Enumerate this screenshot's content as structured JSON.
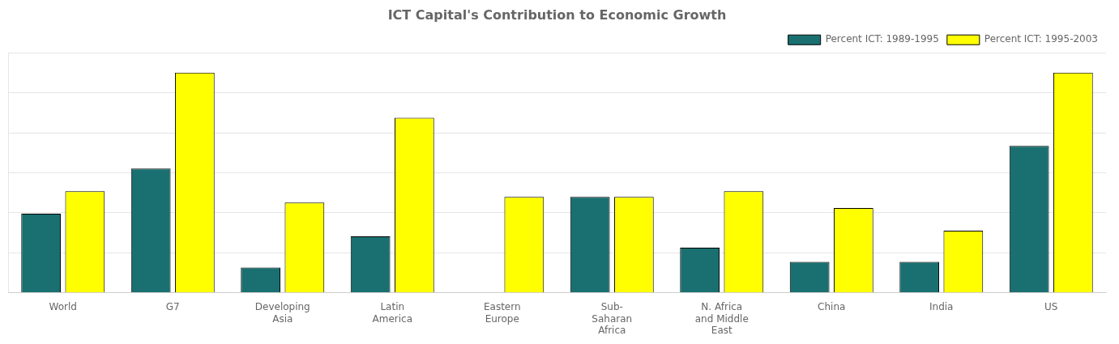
{
  "chart_data": {
    "type": "bar",
    "title": "ICT Capital's Contribution to Economic Growth",
    "categories": [
      "World",
      "G7",
      "Developing\nAsia",
      "Latin\nAmerica",
      "Eastern\nEurope",
      "Sub-\nSaharan\nAfrica",
      "N. Africa\nand Middle\nEast",
      "China",
      "India",
      "US"
    ],
    "series": [
      {
        "name": "Percent ICT: 1989-1995",
        "color": "#1a7070",
        "values": [
          28,
          44,
          9,
          20,
          0,
          34,
          16,
          11,
          11,
          52
        ]
      },
      {
        "name": "Percent ICT: 1995-2003",
        "color": "#ffff00",
        "values": [
          36,
          78,
          32,
          62,
          34,
          34,
          36,
          30,
          22,
          78
        ]
      }
    ],
    "ylim": [
      0,
      85
    ],
    "yticks": [
      0,
      14.166666666666666,
      28.333333333333332,
      42.5,
      56.666666666666664,
      70.83333333333333,
      85
    ],
    "grid": true,
    "tick_labels": "x",
    "legend": "upper right"
  }
}
